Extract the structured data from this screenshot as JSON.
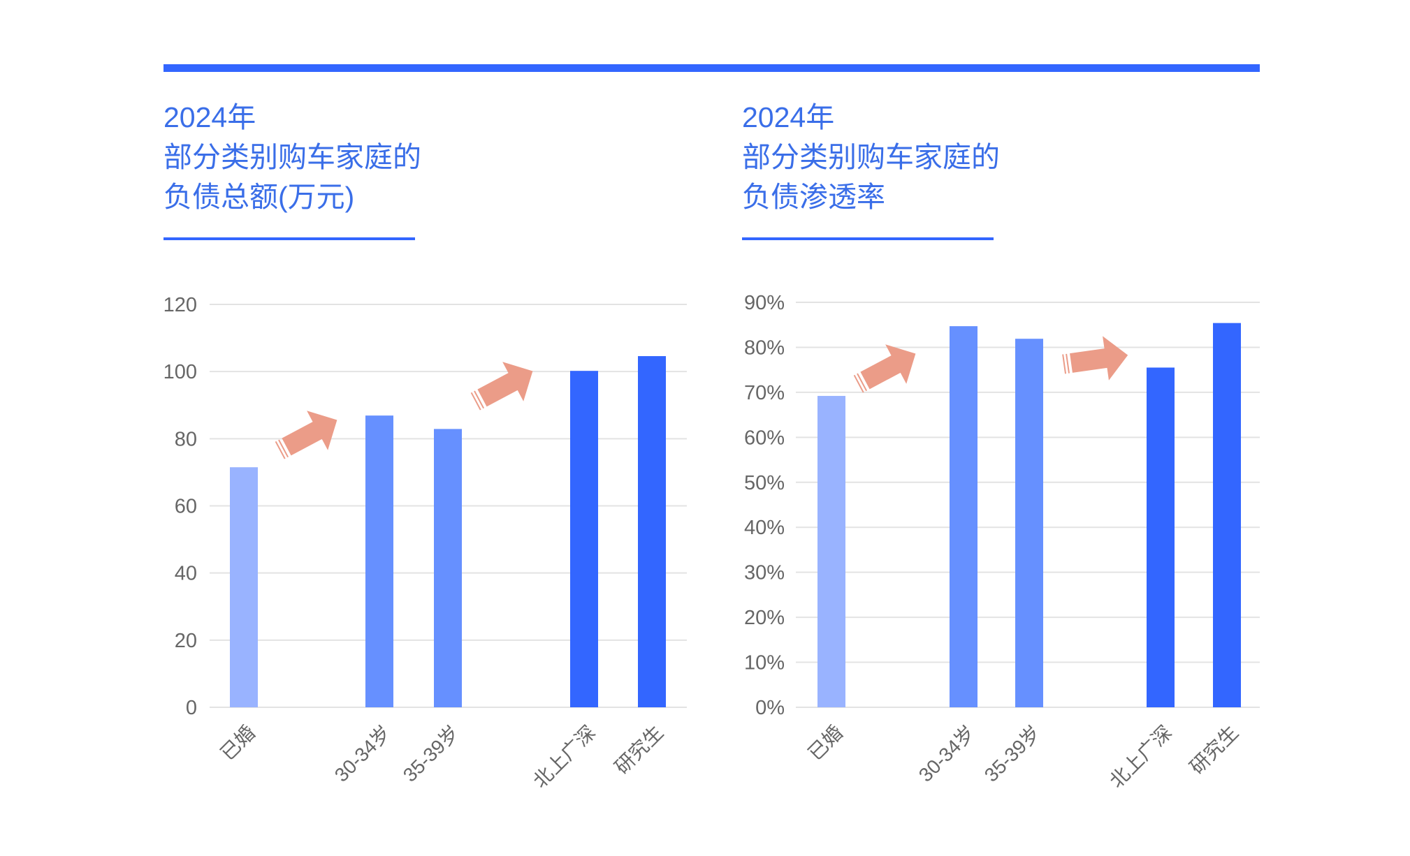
{
  "colors": {
    "accent": "#3366ff",
    "title": "#3a6ee8",
    "bar_light": "#99b3ff",
    "bar_mid": "#6690ff",
    "bar_dark": "#3366ff",
    "arrow": "#eb9c88",
    "grid": "#e3e3e3"
  },
  "chart_data": [
    {
      "type": "bar",
      "title_lines": [
        "2024年",
        "部分类别购车家庭的",
        "负债总额(万元)"
      ],
      "categories": [
        "已婚",
        "30-34岁",
        "35-39岁",
        "北上广深",
        "研究生"
      ],
      "values": [
        71.5,
        86.9,
        82.9,
        100.2,
        104.6
      ],
      "bar_colors": [
        "#99b3ff",
        "#6690ff",
        "#6690ff",
        "#3366ff",
        "#3366ff"
      ],
      "ylim": [
        0,
        120
      ],
      "yticks": [
        "0",
        "20",
        "40",
        "60",
        "80",
        "100",
        "120"
      ],
      "grid": true,
      "annotations": [
        "arrow-up-right",
        "arrow-up-right"
      ]
    },
    {
      "type": "bar",
      "title_lines": [
        "2024年",
        "部分类别购车家庭的",
        "负债渗透率"
      ],
      "categories": [
        "已婚",
        "30-34岁",
        "35-39岁",
        "北上广深",
        "研究生"
      ],
      "values": [
        69.2,
        84.7,
        81.9,
        75.5,
        85.4
      ],
      "bar_colors": [
        "#99b3ff",
        "#6690ff",
        "#6690ff",
        "#3366ff",
        "#3366ff"
      ],
      "ylim": [
        0,
        90
      ],
      "yticks": [
        "0%",
        "10%",
        "20%",
        "30%",
        "40%",
        "50%",
        "60%",
        "70%",
        "80%",
        "90%"
      ],
      "grid": true,
      "annotations": [
        "arrow-up-right",
        "arrow-right"
      ]
    }
  ]
}
